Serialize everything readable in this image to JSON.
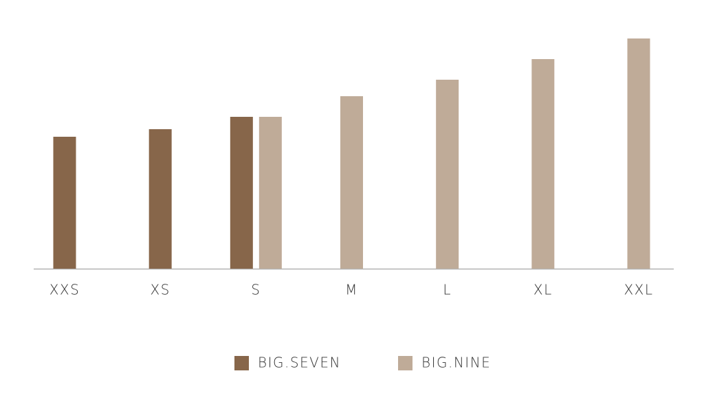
{
  "chart_data": {
    "type": "bar",
    "categories": [
      "XXS",
      "XS",
      "S",
      "M",
      "L",
      "XL",
      "XXL"
    ],
    "series": [
      {
        "name": "BIG.SEVEN",
        "color": "#87664a",
        "values": [
          192,
          203,
          221,
          null,
          null,
          null,
          null
        ]
      },
      {
        "name": "BIG.NINE",
        "color": "#bfab98",
        "values": [
          null,
          null,
          221,
          251,
          275,
          305,
          335
        ]
      }
    ],
    "ylim": [
      0,
      350
    ]
  }
}
